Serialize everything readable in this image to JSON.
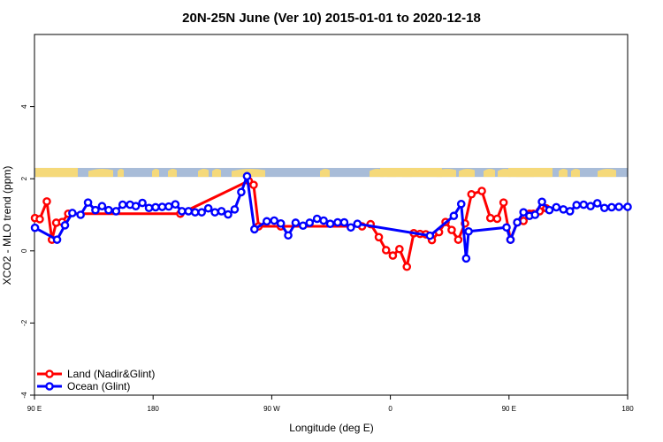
{
  "chart_data": {
    "type": "line",
    "title": "20N-25N June (Ver 10)   2015-01-01 to 2020-12-18",
    "xlabel": "Longitude (deg E)",
    "ylabel": "XCO2 - MLO trend (ppm)",
    "xlim": [
      90,
      450
    ],
    "ylim": [
      -4,
      6
    ],
    "x_ticks": [
      {
        "value": 90,
        "label": "90 E"
      },
      {
        "value": 162,
        "label": "180"
      },
      {
        "value": 234,
        "label": "90 W"
      },
      {
        "value": 306,
        "label": "0"
      },
      {
        "value": 378,
        "label": "90 E"
      },
      {
        "value": 450,
        "label": "180"
      }
    ],
    "y_ticks": [
      {
        "value": -4,
        "label": "-4"
      },
      {
        "value": -2,
        "label": "-2"
      },
      {
        "value": 0,
        "label": "0"
      },
      {
        "value": 2,
        "label": "2"
      },
      {
        "value": 4,
        "label": "4"
      }
    ],
    "legend_position": "bottom-left",
    "grid": false,
    "map_strip": {
      "y_bottom": 2.05,
      "y_top": 2.3,
      "ocean_color": "#a8bcd8",
      "land_color": "#f5d97a"
    },
    "series": [
      {
        "name": "Land (Nadir&Glint)",
        "color": "#ff0000",
        "x": [
          90.3,
          93.2,
          97.5,
          100.6,
          103.2,
          106.8,
          110.5,
          178.5,
          220.0,
          223.0,
          226.0,
          239.5,
          288.8,
          294.0,
          299.0,
          303.4,
          307.5,
          311.5,
          316.0,
          320.2,
          324.0,
          327.5,
          331.2,
          335.5,
          339.5,
          343.2,
          347.2,
          351.3,
          355.2,
          361.5,
          366.7,
          370.8,
          374.7,
          378.9,
          383.0,
          386.8,
          390.4,
          392.7,
          396.6,
          400.6
        ],
        "y": [
          0.91,
          0.88,
          1.37,
          0.31,
          0.78,
          0.8,
          1.03,
          1.03,
          1.94,
          1.83,
          0.68,
          0.68,
          0.68,
          0.74,
          0.38,
          0.02,
          -0.13,
          0.05,
          -0.44,
          0.49,
          0.47,
          0.46,
          0.3,
          0.52,
          0.8,
          0.58,
          0.31,
          0.76,
          1.57,
          1.66,
          0.91,
          0.89,
          1.34,
          0.31,
          0.79,
          0.83,
          1.03,
          1.03,
          1.1,
          1.18
        ]
      },
      {
        "name": "Ocean (Glint)",
        "color": "#0000ff",
        "x": [
          90.3,
          103.7,
          108.5,
          113.0,
          118.0,
          122.5,
          127.0,
          131.0,
          135.0,
          139.5,
          143.5,
          148.0,
          151.5,
          155.5,
          159.5,
          163.5,
          167.5,
          171.5,
          175.5,
          179.5,
          183.5,
          187.5,
          191.5,
          195.5,
          199.5,
          203.5,
          207.5,
          211.5,
          215.5,
          219.0,
          223.5,
          231.0,
          235.5,
          239.5,
          244.0,
          248.5,
          253.0,
          257.0,
          261.5,
          265.5,
          269.5,
          274.0,
          278.0,
          282.0,
          286.0,
          330.0,
          344.5,
          349.0,
          352.0,
          353.5,
          376.5,
          378.9,
          383.0,
          386.8,
          390.4,
          393.8,
          398.0,
          402.5,
          406.7,
          411.0,
          415.0,
          419.0,
          423.3,
          427.5,
          431.6,
          435.9,
          440.3,
          444.7,
          450.0
        ],
        "y": [
          0.64,
          0.31,
          0.71,
          1.05,
          1.0,
          1.34,
          1.13,
          1.24,
          1.13,
          1.1,
          1.28,
          1.28,
          1.24,
          1.33,
          1.19,
          1.21,
          1.22,
          1.23,
          1.29,
          1.1,
          1.1,
          1.07,
          1.07,
          1.18,
          1.07,
          1.1,
          1.01,
          1.15,
          1.63,
          2.07,
          0.6,
          0.82,
          0.84,
          0.76,
          0.43,
          0.78,
          0.7,
          0.78,
          0.89,
          0.84,
          0.75,
          0.79,
          0.79,
          0.65,
          0.75,
          0.42,
          0.97,
          1.3,
          -0.21,
          0.54,
          0.65,
          0.31,
          0.79,
          1.07,
          0.97,
          1.0,
          1.36,
          1.13,
          1.21,
          1.15,
          1.1,
          1.27,
          1.28,
          1.24,
          1.32,
          1.19,
          1.21,
          1.22,
          1.22
        ]
      }
    ]
  }
}
